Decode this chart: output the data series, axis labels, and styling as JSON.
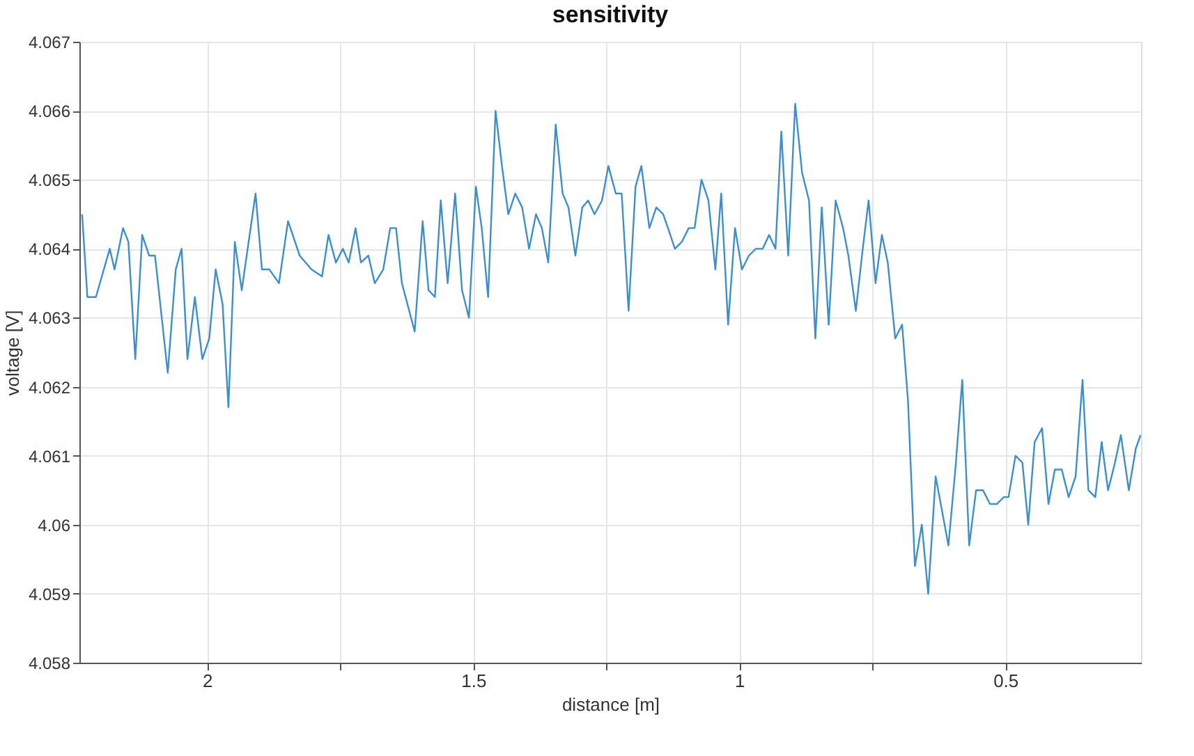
{
  "chart_data": {
    "type": "line",
    "title": "sensitivity",
    "xlabel": "distance [m]",
    "ylabel": "voltage [V]",
    "xlim": [
      2.24,
      0.245
    ],
    "xticks": [
      2,
      {
        "value": 1.75,
        "label": null
      },
      1.5,
      {
        "value": 1.25,
        "label": null
      },
      1,
      {
        "value": 0.75,
        "label": null
      },
      0.5
    ],
    "ylim": [
      4.058,
      4.067
    ],
    "yticks": [
      4.058,
      4.059,
      4.06,
      4.061,
      4.062,
      4.063,
      4.064,
      4.065,
      4.066,
      4.067
    ],
    "grid": true,
    "marker": "none",
    "line_style": "solid",
    "series": [
      {
        "color": "#3d8fcc",
        "x": [
          2.235,
          2.225,
          2.209,
          2.183,
          2.174,
          2.158,
          2.148,
          2.135,
          2.122,
          2.109,
          2.098,
          2.074,
          2.059,
          2.048,
          2.037,
          2.023,
          2.009,
          1.996,
          1.984,
          1.971,
          1.96,
          1.948,
          1.935,
          1.909,
          1.897,
          1.883,
          1.865,
          1.848,
          1.826,
          1.804,
          1.784,
          1.772,
          1.758,
          1.745,
          1.734,
          1.721,
          1.711,
          1.697,
          1.685,
          1.669,
          1.656,
          1.645,
          1.634,
          1.61,
          1.595,
          1.584,
          1.572,
          1.561,
          1.548,
          1.534,
          1.521,
          1.508,
          1.495,
          1.484,
          1.472,
          1.458,
          1.446,
          1.434,
          1.421,
          1.408,
          1.395,
          1.382,
          1.371,
          1.359,
          1.345,
          1.332,
          1.321,
          1.308,
          1.295,
          1.284,
          1.272,
          1.258,
          1.246,
          1.232,
          1.221,
          1.208,
          1.195,
          1.184,
          1.169,
          1.156,
          1.143,
          1.134,
          1.121,
          1.108,
          1.095,
          1.084,
          1.071,
          1.058,
          1.045,
          1.034,
          1.021,
          1.008,
          0.995,
          0.982,
          0.969,
          0.956,
          0.944,
          0.932,
          0.921,
          0.908,
          0.895,
          0.882,
          0.869,
          0.857,
          0.845,
          0.832,
          0.819,
          0.805,
          0.795,
          0.781,
          0.768,
          0.757,
          0.744,
          0.732,
          0.721,
          0.707,
          0.694,
          0.683,
          0.67,
          0.657,
          0.645,
          0.631,
          0.619,
          0.607,
          0.594,
          0.581,
          0.568,
          0.555,
          0.542,
          0.529,
          0.516,
          0.503,
          0.494,
          0.481,
          0.468,
          0.457,
          0.445,
          0.431,
          0.419,
          0.407,
          0.394,
          0.381,
          0.368,
          0.355,
          0.344,
          0.331,
          0.319,
          0.307,
          0.294,
          0.283,
          0.268,
          0.255,
          0.246
        ],
        "values": [
          4.0645,
          4.0633,
          4.0633,
          4.064,
          4.0637,
          4.0643,
          4.0641,
          4.0624,
          4.0642,
          4.0639,
          4.0639,
          4.0622,
          4.0637,
          4.064,
          4.0624,
          4.0633,
          4.0624,
          4.0627,
          4.0637,
          4.0632,
          4.0617,
          4.0641,
          4.0634,
          4.0648,
          4.0637,
          4.0637,
          4.0635,
          4.0644,
          4.0639,
          4.0637,
          4.0636,
          4.0642,
          4.0638,
          4.064,
          4.0638,
          4.0643,
          4.0638,
          4.0639,
          4.0635,
          4.0637,
          4.0643,
          4.0643,
          4.0635,
          4.0628,
          4.0644,
          4.0634,
          4.0633,
          4.0647,
          4.0635,
          4.0648,
          4.0634,
          4.063,
          4.0649,
          4.0643,
          4.0633,
          4.066,
          4.0652,
          4.0645,
          4.0648,
          4.0646,
          4.064,
          4.0645,
          4.0643,
          4.0638,
          4.0658,
          4.0648,
          4.0646,
          4.0639,
          4.0646,
          4.0647,
          4.0645,
          4.0647,
          4.0652,
          4.0648,
          4.0648,
          4.0631,
          4.0649,
          4.0652,
          4.0643,
          4.0646,
          4.0645,
          4.0643,
          4.064,
          4.0641,
          4.0643,
          4.0643,
          4.065,
          4.0647,
          4.0637,
          4.0648,
          4.0629,
          4.0643,
          4.0637,
          4.0639,
          4.064,
          4.064,
          4.0642,
          4.064,
          4.0657,
          4.0639,
          4.0661,
          4.0651,
          4.0647,
          4.0627,
          4.0646,
          4.0629,
          4.0647,
          4.0643,
          4.0639,
          4.0631,
          4.064,
          4.0647,
          4.0635,
          4.0642,
          4.0638,
          4.0627,
          4.0629,
          4.0618,
          4.0594,
          4.06,
          4.059,
          4.0607,
          4.0602,
          4.0597,
          4.0608,
          4.0621,
          4.0597,
          4.0605,
          4.0605,
          4.0603,
          4.0603,
          4.0604,
          4.0604,
          4.061,
          4.0609,
          4.06,
          4.0612,
          4.0614,
          4.0603,
          4.0608,
          4.0608,
          4.0604,
          4.0607,
          4.0621,
          4.0605,
          4.0604,
          4.0612,
          4.0605,
          4.0609,
          4.0613,
          4.0605,
          4.0611,
          4.0613
        ]
      }
    ]
  }
}
